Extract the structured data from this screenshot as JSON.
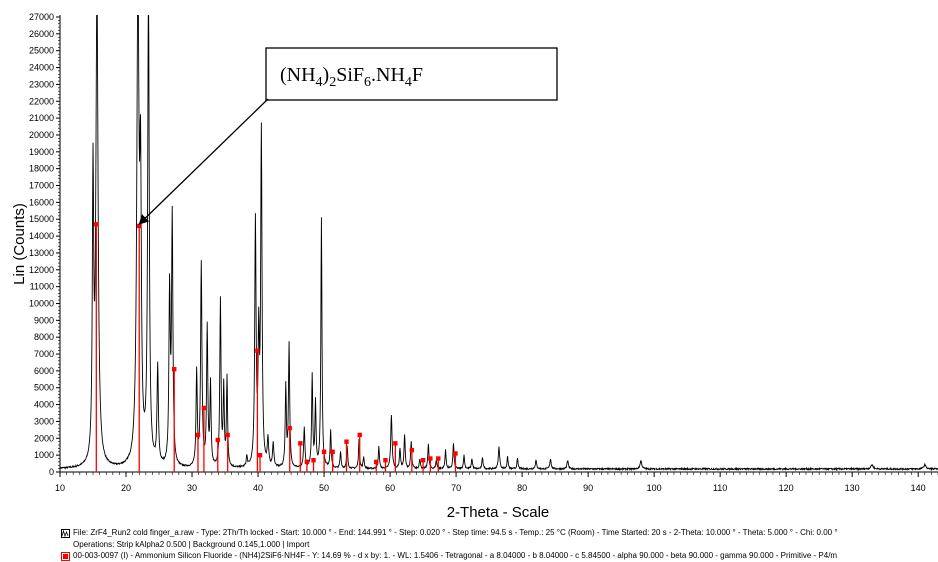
{
  "chart_data": {
    "type": "line",
    "xlabel": "2-Theta - Scale",
    "ylabel": "Lin (Counts)",
    "xlim": [
      10,
      143
    ],
    "ylim": [
      0,
      27000
    ],
    "x_ticks": [
      10,
      20,
      30,
      40,
      50,
      60,
      70,
      80,
      90,
      100,
      110,
      120,
      130,
      140
    ],
    "y_ticks": [
      0,
      1000,
      2000,
      3000,
      4000,
      5000,
      6000,
      7000,
      8000,
      9000,
      10000,
      11000,
      12000,
      13000,
      14000,
      15000,
      16000,
      17000,
      18000,
      19000,
      20000,
      21000,
      22000,
      23000,
      24000,
      25000,
      26000,
      27000
    ],
    "grid": false,
    "legend_position": "bottom",
    "series": [
      {
        "color": "#000000",
        "background": 180,
        "peaks": [
          [
            15.0,
            16500,
            0.12
          ],
          [
            15.6,
            28000,
            0.2
          ],
          [
            21.8,
            28000,
            0.2
          ],
          [
            22.2,
            15000,
            0.14
          ],
          [
            23.4,
            28000,
            0.14
          ],
          [
            24.8,
            5800,
            0.12
          ],
          [
            26.6,
            10200,
            0.12
          ],
          [
            27.0,
            14600,
            0.12
          ],
          [
            30.7,
            5600,
            0.11
          ],
          [
            31.4,
            12000,
            0.12
          ],
          [
            32.3,
            8200,
            0.11
          ],
          [
            32.8,
            4800,
            0.1
          ],
          [
            34.3,
            9900,
            0.11
          ],
          [
            34.8,
            4600,
            0.1
          ],
          [
            35.3,
            5300,
            0.1
          ],
          [
            38.3,
            600,
            0.1
          ],
          [
            39.6,
            14500,
            0.12
          ],
          [
            40.1,
            7200,
            0.11
          ],
          [
            40.5,
            19700,
            0.12
          ],
          [
            41.5,
            1600,
            0.12
          ],
          [
            42.3,
            1400,
            0.12
          ],
          [
            44.2,
            4800,
            0.1
          ],
          [
            44.7,
            7300,
            0.11
          ],
          [
            47.0,
            2400,
            0.11
          ],
          [
            48.2,
            5500,
            0.1
          ],
          [
            48.7,
            3800,
            0.1
          ],
          [
            49.6,
            14800,
            0.1
          ],
          [
            51.0,
            2200,
            0.1
          ],
          [
            52.5,
            1000,
            0.1
          ],
          [
            53.5,
            1300,
            0.1
          ],
          [
            55.3,
            1700,
            0.1
          ],
          [
            56.0,
            700,
            0.1
          ],
          [
            58.3,
            1300,
            0.1
          ],
          [
            60.2,
            3200,
            0.12
          ],
          [
            61.5,
            1200,
            0.1
          ],
          [
            62.2,
            2000,
            0.1
          ],
          [
            63.2,
            1600,
            0.1
          ],
          [
            64.5,
            600,
            0.1
          ],
          [
            65.8,
            1500,
            0.1
          ],
          [
            67.0,
            500,
            0.1
          ],
          [
            68.4,
            1100,
            0.1
          ],
          [
            69.6,
            1500,
            0.1
          ],
          [
            71.2,
            800,
            0.1
          ],
          [
            72.4,
            600,
            0.1
          ],
          [
            74.0,
            700,
            0.1
          ],
          [
            76.5,
            1300,
            0.12
          ],
          [
            77.8,
            700,
            0.1
          ],
          [
            79.3,
            600,
            0.1
          ],
          [
            82.1,
            500,
            0.12
          ],
          [
            84.3,
            600,
            0.12
          ],
          [
            86.9,
            500,
            0.12
          ],
          [
            98.0,
            500,
            0.15
          ],
          [
            133.0,
            250,
            0.2
          ],
          [
            141.0,
            250,
            0.2
          ]
        ]
      },
      {
        "color": "#ff0000",
        "sticks": [
          [
            15.5,
            14700
          ],
          [
            22.0,
            14600
          ],
          [
            27.3,
            6100
          ],
          [
            30.9,
            2200
          ],
          [
            31.8,
            3800
          ],
          [
            33.9,
            1900
          ],
          [
            35.4,
            2200
          ],
          [
            39.9,
            7200
          ],
          [
            40.3,
            1000
          ],
          [
            44.8,
            2600
          ],
          [
            46.4,
            1700
          ],
          [
            47.4,
            600
          ],
          [
            48.4,
            700
          ],
          [
            50.0,
            1200
          ],
          [
            51.3,
            1200
          ],
          [
            53.4,
            1800
          ],
          [
            55.4,
            2200
          ],
          [
            57.9,
            600
          ],
          [
            60.8,
            1700
          ],
          [
            63.3,
            1300
          ],
          [
            66.1,
            800
          ],
          [
            67.3,
            800
          ],
          [
            69.9,
            1100
          ],
          [
            59.3,
            700
          ],
          [
            65.0,
            700
          ]
        ]
      }
    ]
  },
  "annotation": {
    "parts": [
      "(NH",
      "4",
      ")",
      "2",
      "SiF",
      "6",
      ".NH",
      "4",
      "F"
    ],
    "arrow_target": [
      22.0,
      14600
    ]
  },
  "legend": {
    "line1": "File: ZrF4_Run2 cold finger_a.raw - Type: 2Th/Th locked - Start: 10.000 ° - End: 144.991 ° - Step: 0.020 ° - Step time: 94.5 s - Temp.: 25 °C (Room) - Time Started: 20 s - 2-Theta: 10.000 ° - Theta: 5.000 ° - Chi: 0.00 °",
    "line2": "Operations: Strip kAlpha2 0.500 | Background 0.145,1.000 | Import",
    "line3": "00-003-0097 (I) - Ammonium Silicon Fluoride - (NH4)2SiF6·NH4F - Y: 14.69 % - d x by: 1. - WL: 1.5406 - Tetragonal - a 8.04000 - b 8.04000 - c 5.84500 - alpha 90.000 - beta 90.000 - gamma 90.000 - Primitive - P4/m",
    "icon1_color": "#000000",
    "icon2_color": "#ff0000"
  }
}
